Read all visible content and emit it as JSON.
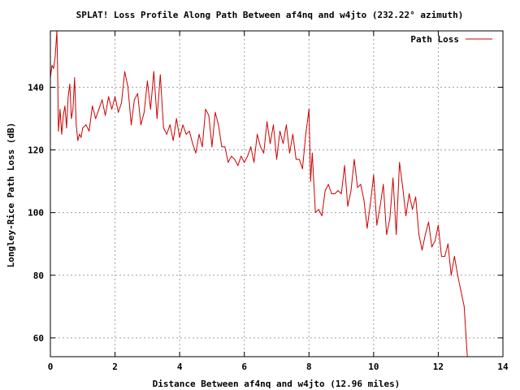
{
  "chart_data": {
    "type": "line",
    "title": "SPLAT! Loss Profile Along Path Between af4nq and w4jto (232.22° azimuth)",
    "xlabel": "Distance Between af4nq and w4jto (12.96 miles)",
    "ylabel": "Longley-Rice Path Loss (dB)",
    "xlim": [
      0,
      14
    ],
    "ylim": [
      54,
      158
    ],
    "xticks": [
      0,
      2,
      4,
      6,
      8,
      10,
      12,
      14
    ],
    "yticks": [
      60,
      80,
      100,
      120,
      140
    ],
    "grid": true,
    "legend_position": "top-right",
    "colors": {
      "series": "#cc0000",
      "grid": "#a0a0a0",
      "frame": "#000000"
    },
    "series": [
      {
        "name": "Path Loss",
        "x": [
          0.0,
          0.05,
          0.1,
          0.15,
          0.2,
          0.22,
          0.25,
          0.3,
          0.35,
          0.4,
          0.45,
          0.5,
          0.55,
          0.6,
          0.65,
          0.7,
          0.75,
          0.8,
          0.85,
          0.9,
          0.95,
          1.0,
          1.1,
          1.2,
          1.3,
          1.4,
          1.5,
          1.6,
          1.7,
          1.8,
          1.9,
          2.0,
          2.1,
          2.2,
          2.3,
          2.4,
          2.5,
          2.6,
          2.7,
          2.8,
          2.9,
          3.0,
          3.1,
          3.2,
          3.3,
          3.4,
          3.5,
          3.6,
          3.7,
          3.8,
          3.9,
          4.0,
          4.1,
          4.2,
          4.3,
          4.4,
          4.5,
          4.6,
          4.7,
          4.8,
          4.9,
          5.0,
          5.1,
          5.2,
          5.3,
          5.4,
          5.5,
          5.6,
          5.7,
          5.8,
          5.9,
          6.0,
          6.1,
          6.2,
          6.3,
          6.4,
          6.5,
          6.6,
          6.7,
          6.8,
          6.9,
          7.0,
          7.1,
          7.2,
          7.3,
          7.4,
          7.5,
          7.6,
          7.7,
          7.8,
          7.9,
          8.0,
          8.05,
          8.1,
          8.2,
          8.3,
          8.4,
          8.5,
          8.6,
          8.7,
          8.8,
          8.9,
          9.0,
          9.1,
          9.2,
          9.3,
          9.4,
          9.5,
          9.6,
          9.7,
          9.8,
          9.9,
          10.0,
          10.1,
          10.2,
          10.3,
          10.4,
          10.5,
          10.6,
          10.7,
          10.8,
          10.9,
          11.0,
          11.1,
          11.2,
          11.3,
          11.4,
          11.5,
          11.6,
          11.7,
          11.8,
          11.9,
          12.0,
          12.1,
          12.2,
          12.3,
          12.4,
          12.5,
          12.6,
          12.7,
          12.8,
          12.85,
          12.9
        ],
        "values": [
          143,
          147,
          146,
          150,
          158,
          148,
          126,
          133,
          125,
          131,
          134,
          127,
          137,
          141,
          130,
          133,
          143,
          128,
          123,
          125,
          124,
          127,
          128,
          126,
          134,
          130,
          133,
          136,
          131,
          137,
          133,
          137,
          132,
          135,
          145,
          140,
          128,
          136,
          138,
          128,
          132,
          142,
          133,
          145,
          130,
          144,
          127,
          125,
          128,
          123,
          130,
          124,
          128,
          125,
          126,
          122,
          119,
          125,
          121,
          133,
          131,
          121,
          132,
          128,
          121,
          121,
          116,
          118,
          117,
          115,
          118,
          116,
          118,
          121,
          116,
          125,
          121,
          119,
          129,
          122,
          128,
          117,
          126,
          122,
          128,
          119,
          125,
          117,
          117,
          114,
          125,
          133,
          110,
          119,
          100,
          101,
          99,
          107,
          109,
          106,
          106,
          107,
          106,
          115,
          102,
          107,
          117,
          108,
          109,
          104,
          95,
          103,
          112,
          96,
          102,
          109,
          93,
          98,
          111,
          93,
          116,
          108,
          99,
          106,
          101,
          105,
          93,
          88,
          93,
          97,
          89,
          91,
          96,
          86,
          86,
          90,
          80,
          86,
          80,
          75,
          70,
          62,
          54
        ]
      }
    ]
  }
}
